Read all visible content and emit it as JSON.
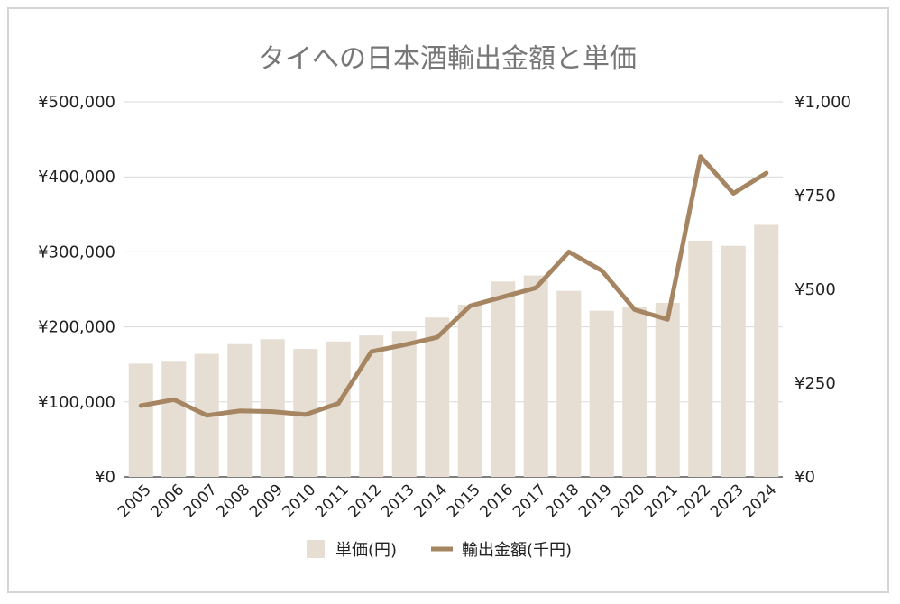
{
  "chart_data": {
    "type": "bar+line",
    "title": "タイへの日本酒輸出金額と単価",
    "categories": [
      "2005",
      "2006",
      "2007",
      "2008",
      "2009",
      "2010",
      "2011",
      "2012",
      "2013",
      "2014",
      "2015",
      "2016",
      "2017",
      "2018",
      "2019",
      "2020",
      "2021",
      "2022",
      "2023",
      "2024"
    ],
    "series": [
      {
        "name": "単価(円)",
        "type": "bar",
        "axis": "right",
        "values": [
          302,
          307,
          328,
          354,
          367,
          341,
          361,
          377,
          389,
          425,
          459,
          521,
          537,
          496,
          443,
          452,
          464,
          630,
          616,
          672
        ]
      },
      {
        "name": "輸出金額(千円)",
        "type": "line",
        "axis": "left",
        "values": [
          95000,
          103000,
          82000,
          88000,
          87000,
          83000,
          98000,
          167000,
          176000,
          186000,
          228000,
          240000,
          252000,
          300000,
          275000,
          223000,
          210000,
          427000,
          378000,
          405000
        ]
      }
    ],
    "left_axis": {
      "ticks": [
        "¥0",
        "¥100,000",
        "¥200,000",
        "¥300,000",
        "¥400,000",
        "¥500,000"
      ],
      "ylim": [
        0,
        500000
      ]
    },
    "right_axis": {
      "ticks": [
        "¥0",
        "¥250",
        "¥500",
        "¥750",
        "¥1,000"
      ],
      "ylim": [
        0,
        1000
      ]
    },
    "grid": true,
    "legend_position": "bottom",
    "colors": {
      "bar": "#e6ddd3",
      "line": "#a68662",
      "grid": "#d9d9d9",
      "title": "#777777"
    }
  }
}
